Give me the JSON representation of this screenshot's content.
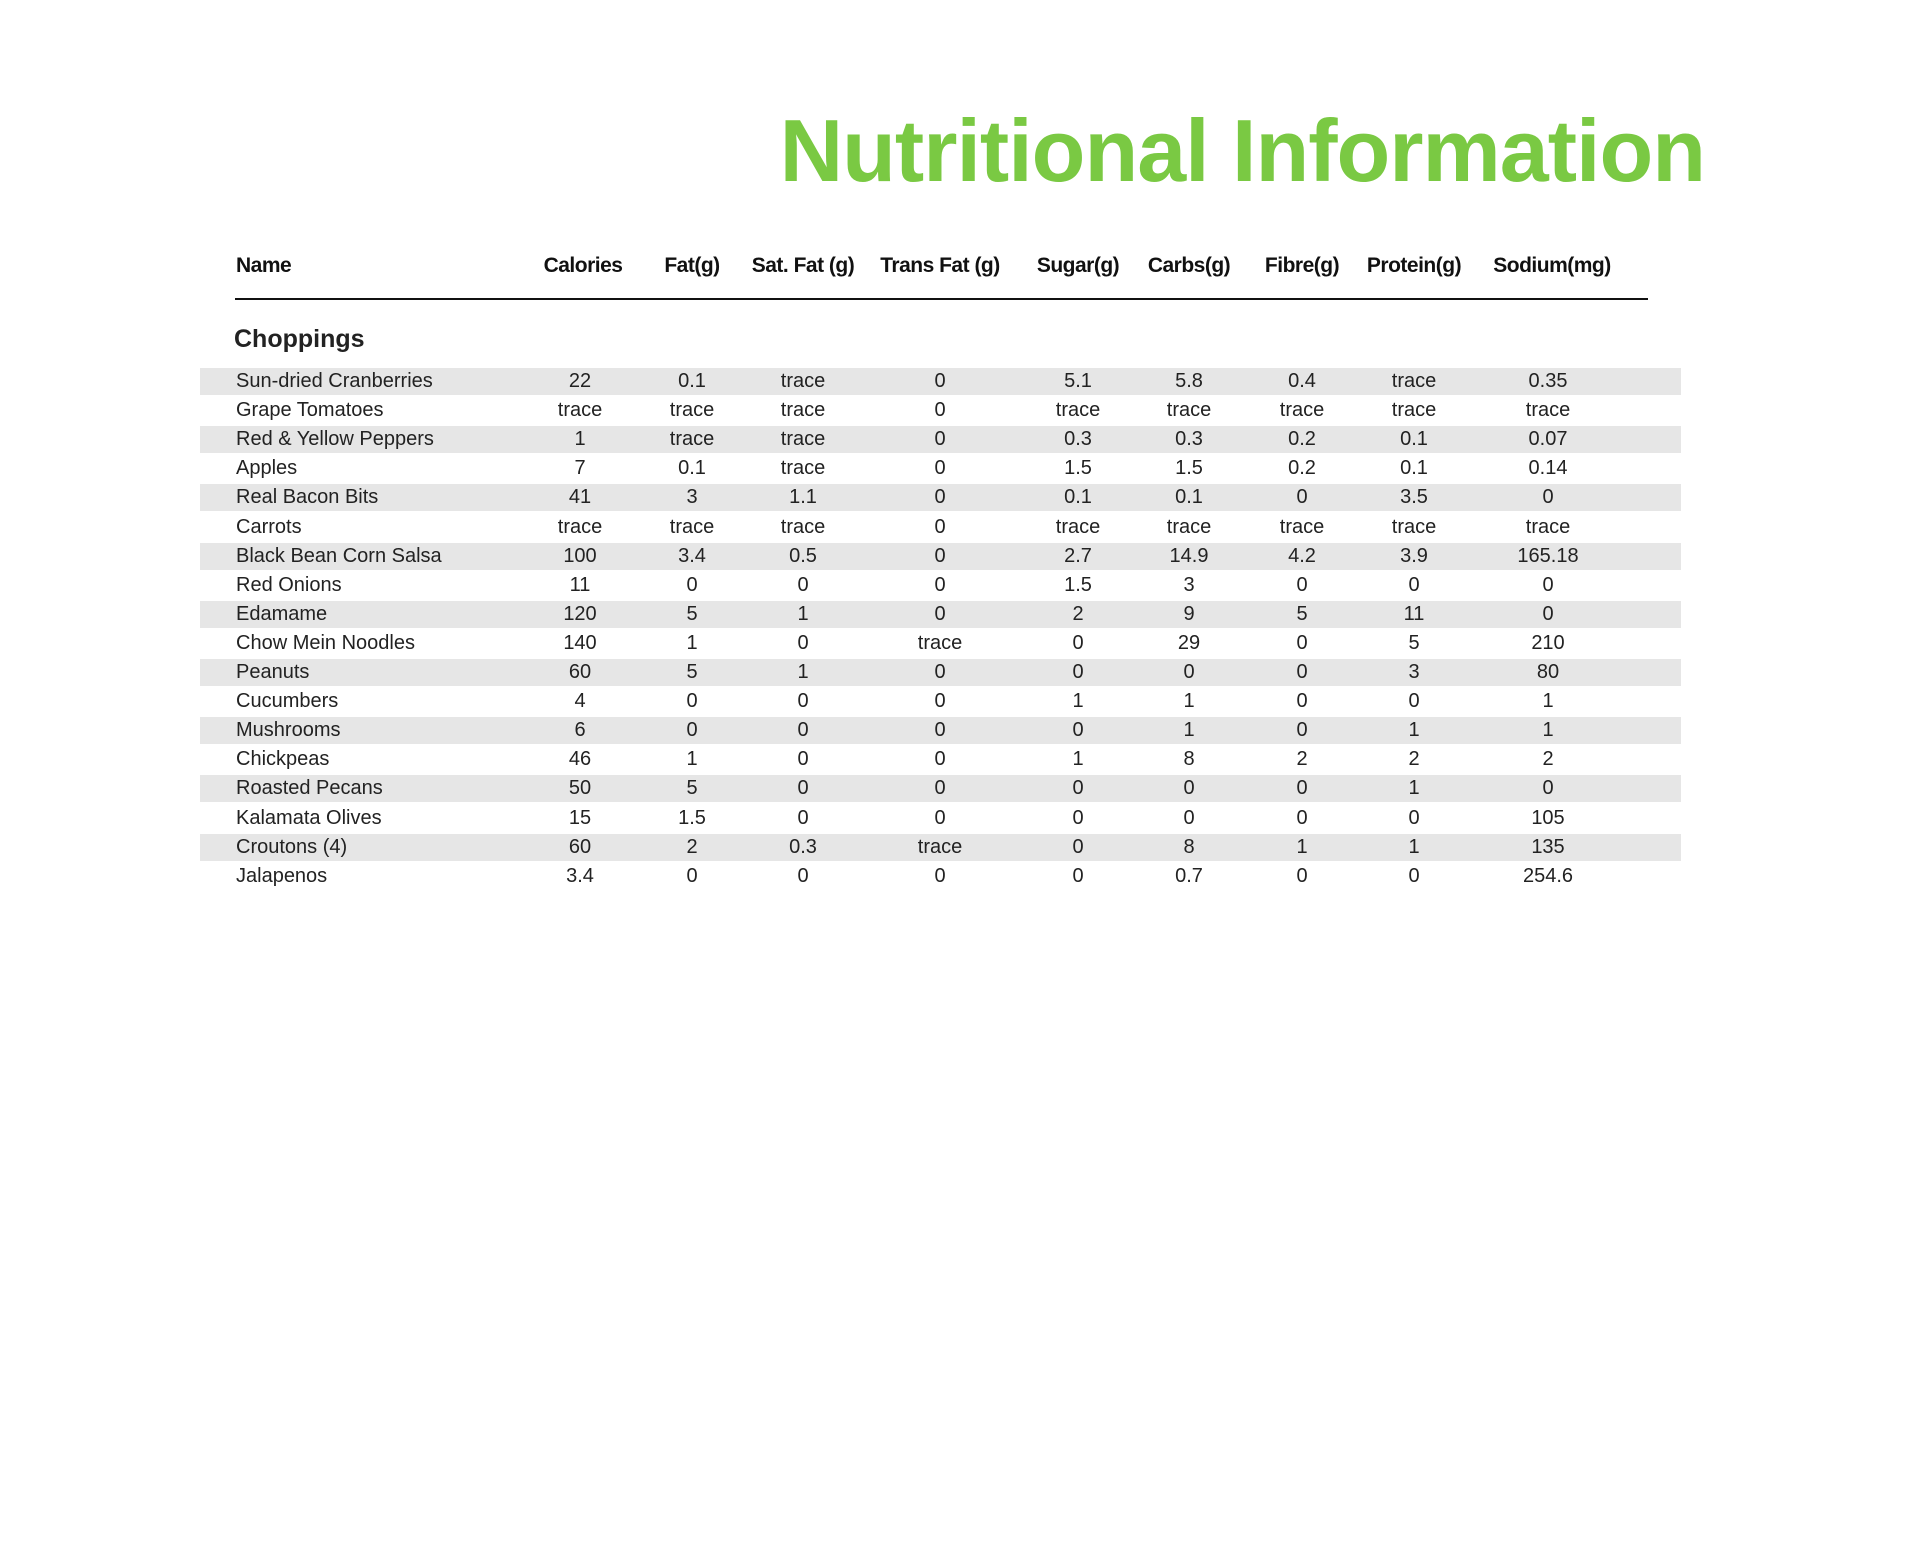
{
  "title": "Nutritional Information",
  "columns": [
    "Name",
    "Calories",
    "Fat(g)",
    "Sat. Fat (g)",
    "Trans Fat (g)",
    "Sugar(g)",
    "Carbs(g)",
    "Fibre(g)",
    "Protein(g)",
    "Sodium(mg)"
  ],
  "section": "Choppings",
  "row_shading_color": "#e6e6e6",
  "accent_color": "#7ac943",
  "rows": [
    [
      "Sun-dried Cranberries",
      "22",
      "0.1",
      "trace",
      "0",
      "5.1",
      "5.8",
      "0.4",
      "trace",
      "0.35"
    ],
    [
      "Grape Tomatoes",
      "trace",
      "trace",
      "trace",
      "0",
      "trace",
      "trace",
      "trace",
      "trace",
      "trace"
    ],
    [
      "Red & Yellow Peppers",
      "1",
      "trace",
      "trace",
      "0",
      "0.3",
      "0.3",
      "0.2",
      "0.1",
      "0.07"
    ],
    [
      "Apples",
      "7",
      "0.1",
      "trace",
      "0",
      "1.5",
      "1.5",
      "0.2",
      "0.1",
      "0.14"
    ],
    [
      "Real Bacon Bits",
      "41",
      "3",
      "1.1",
      "0",
      "0.1",
      "0.1",
      "0",
      "3.5",
      "0"
    ],
    [
      "Carrots",
      "trace",
      "trace",
      "trace",
      "0",
      "trace",
      "trace",
      "trace",
      "trace",
      "trace"
    ],
    [
      "Black Bean Corn Salsa",
      "100",
      "3.4",
      "0.5",
      "0",
      "2.7",
      "14.9",
      "4.2",
      "3.9",
      "165.18"
    ],
    [
      "Red Onions",
      "11",
      "0",
      "0",
      "0",
      "1.5",
      "3",
      "0",
      "0",
      "0"
    ],
    [
      "Edamame",
      "120",
      "5",
      "1",
      "0",
      "2",
      "9",
      "5",
      "11",
      "0"
    ],
    [
      "Chow Mein Noodles",
      "140",
      "1",
      "0",
      "trace",
      "0",
      "29",
      "0",
      "5",
      "210"
    ],
    [
      "Peanuts",
      "60",
      "5",
      "1",
      "0",
      "0",
      "0",
      "0",
      "3",
      "80"
    ],
    [
      "Cucumbers",
      "4",
      "0",
      "0",
      "0",
      "1",
      "1",
      "0",
      "0",
      "1"
    ],
    [
      "Mushrooms",
      "6",
      "0",
      "0",
      "0",
      "0",
      "1",
      "0",
      "1",
      "1"
    ],
    [
      "Chickpeas",
      "46",
      "1",
      "0",
      "0",
      "1",
      "8",
      "2",
      "2",
      "2"
    ],
    [
      "Roasted Pecans",
      "50",
      "5",
      "0",
      "0",
      "0",
      "0",
      "0",
      "1",
      "0"
    ],
    [
      "Kalamata Olives",
      "15",
      "1.5",
      "0",
      "0",
      "0",
      "0",
      "0",
      "0",
      "105"
    ],
    [
      "Croutons (4)",
      "60",
      "2",
      "0.3",
      "trace",
      "0",
      "8",
      "1",
      "1",
      "135"
    ],
    [
      "Jalapenos",
      "3.4",
      "0",
      "0",
      "0",
      "0",
      "0.7",
      "0",
      "0",
      "254.6"
    ]
  ]
}
